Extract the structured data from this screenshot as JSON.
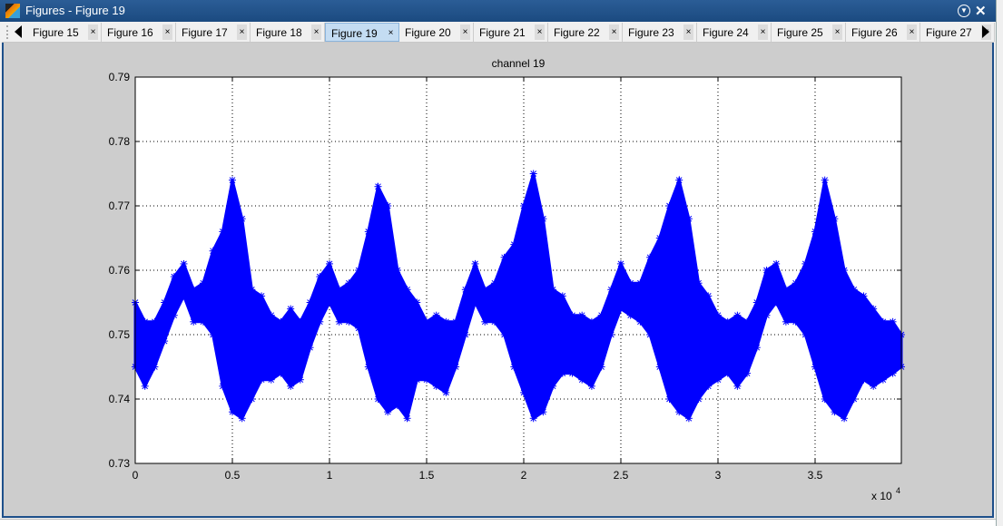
{
  "window": {
    "title": "Figures - Figure 19",
    "menu_icon": "dropdown-circle-icon",
    "close_icon": "close-icon"
  },
  "tabs": [
    {
      "label": "Figure 15"
    },
    {
      "label": "Figure 16"
    },
    {
      "label": "Figure 17"
    },
    {
      "label": "Figure 18"
    },
    {
      "label": "Figure 19",
      "selected": true
    },
    {
      "label": "Figure 20"
    },
    {
      "label": "Figure 21"
    },
    {
      "label": "Figure 22"
    },
    {
      "label": "Figure 23"
    },
    {
      "label": "Figure 24"
    },
    {
      "label": "Figure 25"
    },
    {
      "label": "Figure 26"
    },
    {
      "label": "Figure 27"
    }
  ],
  "tab_close_glyph": "×",
  "colors": {
    "series": "#0000ff",
    "titlebar": "#1f4f86",
    "selected_tab": "#c4dcf2",
    "figure_bg": "#cdcdcd"
  },
  "chart_data": {
    "type": "scatter",
    "title": "channel 19",
    "marker": "*",
    "grid": true,
    "xlim": [
      0,
      39440
    ],
    "ylim": [
      0.73,
      0.79
    ],
    "x_ticks": [
      0,
      5000,
      10000,
      15000,
      20000,
      25000,
      30000,
      35000
    ],
    "x_tick_labels": [
      "0",
      "0.5",
      "1",
      "1.5",
      "2",
      "2.5",
      "3",
      "3.5"
    ],
    "x_exponent_label": "x 10",
    "x_exponent": "4",
    "y_ticks": [
      0.73,
      0.74,
      0.75,
      0.76,
      0.77,
      0.78,
      0.79
    ],
    "y_tick_labels": [
      "0.73",
      "0.74",
      "0.75",
      "0.76",
      "0.77",
      "0.78",
      "0.79"
    ],
    "envelope": {
      "x": [
        0,
        500,
        1000,
        1500,
        2000,
        2500,
        3000,
        3500,
        4000,
        4500,
        5000,
        5500,
        6000,
        6500,
        7000,
        7500,
        8000,
        8500,
        9000,
        9500,
        10000,
        10500,
        11000,
        11500,
        12000,
        12500,
        13000,
        13500,
        14000,
        14500,
        15000,
        15500,
        16000,
        16500,
        17000,
        17500,
        18000,
        18500,
        19000,
        19500,
        20000,
        20500,
        21000,
        21500,
        22000,
        22500,
        23000,
        23500,
        24000,
        24500,
        25000,
        25500,
        26000,
        26500,
        27000,
        27500,
        28000,
        28500,
        29000,
        29500,
        30000,
        30500,
        31000,
        31500,
        32000,
        32500,
        33000,
        33500,
        34000,
        34500,
        35000,
        35500,
        36000,
        36500,
        37000,
        37500,
        38000,
        38500,
        39000,
        39440
      ],
      "min": [
        0.745,
        0.742,
        0.745,
        0.749,
        0.753,
        0.756,
        0.752,
        0.752,
        0.75,
        0.742,
        0.738,
        0.737,
        0.74,
        0.743,
        0.743,
        0.744,
        0.742,
        0.743,
        0.748,
        0.752,
        0.755,
        0.752,
        0.752,
        0.751,
        0.745,
        0.74,
        0.738,
        0.739,
        0.737,
        0.743,
        0.743,
        0.742,
        0.741,
        0.745,
        0.75,
        0.755,
        0.752,
        0.752,
        0.75,
        0.745,
        0.741,
        0.737,
        0.738,
        0.742,
        0.744,
        0.744,
        0.743,
        0.742,
        0.745,
        0.75,
        0.754,
        0.753,
        0.752,
        0.75,
        0.745,
        0.74,
        0.738,
        0.737,
        0.74,
        0.742,
        0.743,
        0.744,
        0.742,
        0.744,
        0.748,
        0.753,
        0.755,
        0.752,
        0.752,
        0.75,
        0.745,
        0.74,
        0.738,
        0.737,
        0.74,
        0.743,
        0.742,
        0.743,
        0.744,
        0.745
      ],
      "max": [
        0.755,
        0.752,
        0.752,
        0.755,
        0.759,
        0.761,
        0.757,
        0.758,
        0.763,
        0.766,
        0.774,
        0.768,
        0.757,
        0.756,
        0.753,
        0.752,
        0.754,
        0.752,
        0.755,
        0.759,
        0.761,
        0.757,
        0.758,
        0.76,
        0.766,
        0.773,
        0.77,
        0.76,
        0.757,
        0.755,
        0.752,
        0.753,
        0.752,
        0.752,
        0.757,
        0.761,
        0.757,
        0.758,
        0.762,
        0.764,
        0.77,
        0.775,
        0.768,
        0.757,
        0.756,
        0.753,
        0.753,
        0.752,
        0.753,
        0.757,
        0.761,
        0.758,
        0.758,
        0.762,
        0.765,
        0.77,
        0.774,
        0.768,
        0.758,
        0.756,
        0.753,
        0.752,
        0.753,
        0.752,
        0.755,
        0.76,
        0.761,
        0.757,
        0.758,
        0.761,
        0.766,
        0.774,
        0.768,
        0.76,
        0.757,
        0.756,
        0.754,
        0.752,
        0.752,
        0.75
      ]
    }
  }
}
